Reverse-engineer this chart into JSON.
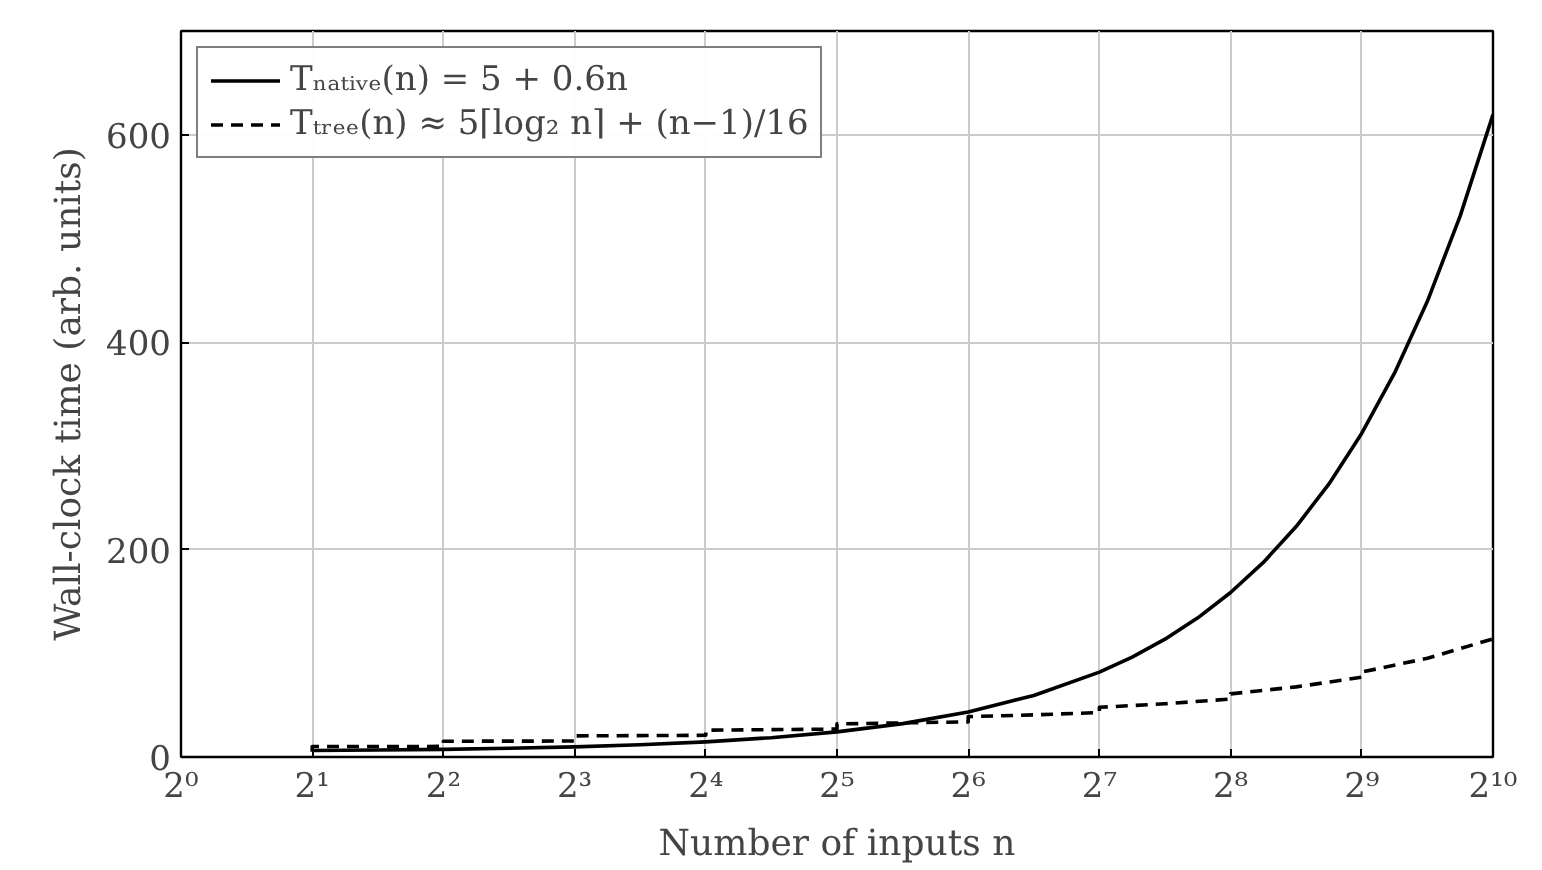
{
  "chart_data": {
    "type": "line",
    "xlabel": "Number of inputs n",
    "ylabel": "Wall-clock time (arb. units)",
    "log": "x",
    "xlim": [
      1,
      1024
    ],
    "ylim": [
      0,
      700
    ],
    "xticks": [
      {
        "value": 1,
        "label": "2⁰"
      },
      {
        "value": 2,
        "label": "2¹"
      },
      {
        "value": 4,
        "label": "2²"
      },
      {
        "value": 8,
        "label": "2³"
      },
      {
        "value": 16,
        "label": "2⁴"
      },
      {
        "value": 32,
        "label": "2⁵"
      },
      {
        "value": 64,
        "label": "2⁶"
      },
      {
        "value": 128,
        "label": "2⁷"
      },
      {
        "value": 256,
        "label": "2⁸"
      },
      {
        "value": 512,
        "label": "2⁹"
      },
      {
        "value": 1024,
        "label": "2¹⁰"
      }
    ],
    "yticks": [
      0,
      200,
      400,
      600
    ],
    "grid": true,
    "legend": "top left",
    "marker": "none",
    "series": [
      {
        "name": "Tₙₐₜᵢᵥₑ(n) = 5 + 0.6n",
        "color": "#000000",
        "line_style": "solid",
        "x": [
          2,
          2.83,
          4,
          5.66,
          8,
          11.3,
          16,
          22.6,
          32,
          45.3,
          64,
          90.5,
          128,
          152.2,
          181,
          215.3,
          256,
          304.4,
          362,
          430.5,
          512,
          608.9,
          724,
          861.1,
          1024
        ],
        "values": [
          6.2,
          6.7,
          7.4,
          8.4,
          9.8,
          11.8,
          14.6,
          18.6,
          24.2,
          32.2,
          43.4,
          59.3,
          81.8,
          96.3,
          113.6,
          134.2,
          158.6,
          187.6,
          222.2,
          263.3,
          312.2,
          370.3,
          439.4,
          521.7,
          619.4
        ]
      },
      {
        "name": "Tₜᵣₑₑ(n) ≈ 5⌈log₂ n⌉ + (n−1)/16",
        "color": "#000000",
        "line_style": "dashed",
        "x": [
          2,
          2,
          4,
          4,
          8,
          8,
          16,
          16,
          32,
          32,
          64,
          64,
          90.5,
          128,
          128,
          181,
          256,
          256,
          362,
          512,
          512,
          724,
          1024
        ],
        "values": [
          5.1,
          10.1,
          10.2,
          15.2,
          15.4,
          20.4,
          20.9,
          25.9,
          26.9,
          31.9,
          33.9,
          38.9,
          40.6,
          42.9,
          47.9,
          51.3,
          55.9,
          60.9,
          67.6,
          76.9,
          81.9,
          95.2,
          113.9
        ]
      }
    ]
  }
}
